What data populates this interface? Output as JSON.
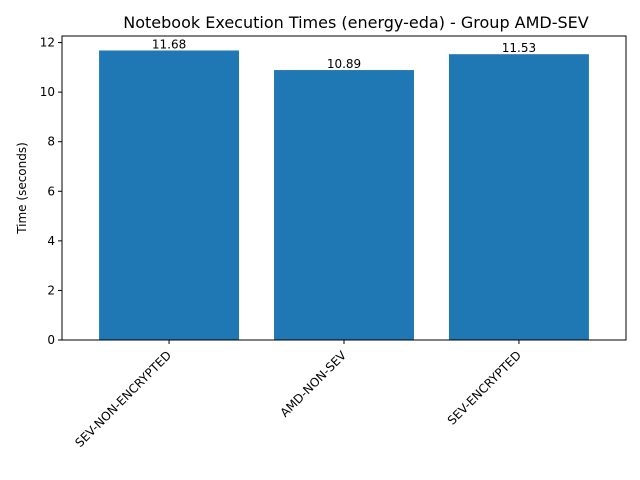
{
  "chart_data": {
    "type": "bar",
    "title": "Notebook Execution Times (energy-eda) - Group AMD-SEV",
    "xlabel": "",
    "ylabel": "Time (seconds)",
    "categories": [
      "SEV-NON-ENCRYPTED",
      "AMD-NON-SEV",
      "SEV-ENCRYPTED"
    ],
    "values": [
      11.68,
      10.89,
      11.53
    ],
    "value_labels": [
      "11.68",
      "10.89",
      "11.53"
    ],
    "ylim": [
      0,
      12.264
    ],
    "yticks": [
      0,
      2,
      4,
      6,
      8,
      10,
      12
    ],
    "grid": false,
    "bar_color": "#1f77b4"
  }
}
